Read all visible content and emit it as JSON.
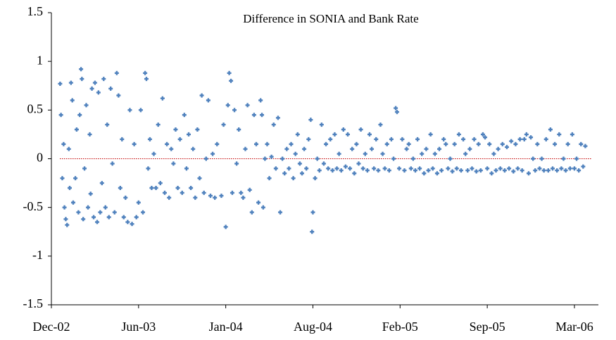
{
  "chart_data": {
    "type": "scatter",
    "title": "Difference in SONIA and Bank Rate",
    "x": [
      37620,
      37622,
      37625,
      37628,
      37630,
      37633,
      37636,
      37640,
      37642,
      37645,
      37648,
      37650,
      37655,
      37658,
      37662,
      37665,
      37668,
      37670,
      37673,
      37676,
      37680,
      37684,
      37688,
      37690,
      37693,
      37697,
      37700,
      37705,
      37708,
      37712,
      37716,
      37720,
      37724,
      37728,
      37732,
      37736,
      37740,
      37745,
      37750,
      37754,
      37758,
      37762,
      37766,
      37770,
      37775,
      37780,
      37785,
      37790,
      37795,
      37800,
      37805,
      37810,
      37815,
      37818,
      37822,
      37826,
      37830,
      37835,
      37840,
      37845,
      37850,
      37855,
      37860,
      37865,
      37870,
      37875,
      37880,
      37885,
      37890,
      37895,
      37900,
      37905,
      37910,
      37915,
      37920,
      37925,
      37930,
      37935,
      37940,
      37945,
      37950,
      37955,
      37960,
      37965,
      37970,
      37975,
      37980,
      37990,
      37995,
      38000,
      38005,
      38008,
      38012,
      38015,
      38020,
      38025,
      38030,
      38035,
      38040,
      38045,
      38050,
      38055,
      38060,
      38065,
      38070,
      38075,
      38080,
      38083,
      38086,
      38090,
      38095,
      38100,
      38105,
      38110,
      38115,
      38120,
      38125,
      38130,
      38135,
      38140,
      38145,
      38150,
      38155,
      38160,
      38165,
      38170,
      38175,
      38180,
      38185,
      38190,
      38195,
      38198,
      38200,
      38205,
      38210,
      38215,
      38220,
      38225,
      38230,
      38235,
      38240,
      38245,
      38250,
      38255,
      38260,
      38265,
      38270,
      38275,
      38280,
      38285,
      38290,
      38295,
      38300,
      38305,
      38310,
      38315,
      38320,
      38325,
      38330,
      38335,
      38340,
      38345,
      38350,
      38355,
      38360,
      38365,
      38370,
      38375,
      38380,
      38385,
      38390,
      38393,
      38398,
      38405,
      38410,
      38415,
      38420,
      38425,
      38430,
      38435,
      38440,
      38445,
      38450,
      38455,
      38460,
      38465,
      38470,
      38475,
      38480,
      38485,
      38490,
      38495,
      38500,
      38505,
      38510,
      38515,
      38520,
      38525,
      38530,
      38535,
      38540,
      38545,
      38550,
      38555,
      38560,
      38565,
      38570,
      38575,
      38580,
      38585,
      38590,
      38595,
      38600,
      38605,
      38610,
      38615,
      38620,
      38625,
      38630,
      38635,
      38640,
      38645,
      38650,
      38655,
      38660,
      38665,
      38670,
      38675,
      38680,
      38685,
      38690,
      38695,
      38700,
      38705,
      38710,
      38715,
      38720,
      38725,
      38730,
      38735,
      38740,
      38745,
      38750,
      38755,
      38760,
      38765,
      38770,
      38775,
      38780,
      38785,
      38790,
      38795,
      38800,
      38805,
      38810,
      38815,
      38820,
      38825
    ],
    "series": [
      {
        "color": "#4f81bd",
        "values": [
          0.77,
          0.45,
          -0.2,
          0.15,
          -0.5,
          -0.62,
          -0.68,
          0.1,
          -0.3,
          0.78,
          0.6,
          -0.45,
          -0.2,
          0.3,
          -0.55,
          0.45,
          0.92,
          0.82,
          -0.62,
          -0.1,
          0.55,
          -0.5,
          0.25,
          -0.36,
          0.72,
          -0.6,
          0.78,
          -0.65,
          0.68,
          -0.55,
          -0.25,
          0.82,
          -0.5,
          0.35,
          -0.6,
          0.72,
          -0.05,
          -0.55,
          0.88,
          0.65,
          -0.3,
          0.2,
          -0.6,
          -0.4,
          -0.65,
          0.5,
          -0.67,
          0.15,
          -0.6,
          -0.45,
          0.5,
          -0.55,
          0.88,
          0.82,
          -0.1,
          0.2,
          -0.3,
          0.05,
          -0.3,
          0.35,
          -0.25,
          0.62,
          -0.35,
          0.15,
          -0.4,
          0.1,
          -0.05,
          0.3,
          -0.3,
          0.2,
          -0.35,
          0.45,
          -0.1,
          0.25,
          -0.3,
          0.1,
          -0.4,
          0.3,
          -0.2,
          0.65,
          -0.35,
          0.0,
          0.6,
          -0.38,
          0.05,
          -0.4,
          0.15,
          -0.38,
          0.35,
          -0.7,
          0.55,
          0.88,
          0.8,
          -0.35,
          0.5,
          -0.05,
          0.3,
          -0.35,
          -0.4,
          0.1,
          0.55,
          -0.32,
          -0.55,
          0.45,
          0.15,
          -0.45,
          0.6,
          0.45,
          -0.5,
          0.0,
          0.15,
          -0.2,
          0.02,
          0.35,
          -0.1,
          0.42,
          -0.55,
          0.0,
          -0.15,
          0.1,
          -0.1,
          0.15,
          -0.2,
          0.05,
          0.25,
          -0.05,
          -0.15,
          0.1,
          -0.1,
          0.2,
          0.4,
          -0.75,
          -0.55,
          -0.2,
          0.0,
          -0.12,
          0.35,
          -0.05,
          0.15,
          -0.1,
          0.2,
          -0.12,
          0.25,
          -0.1,
          0.05,
          -0.12,
          0.3,
          -0.08,
          0.25,
          -0.1,
          0.1,
          -0.15,
          0.15,
          -0.05,
          0.3,
          -0.1,
          0.05,
          -0.12,
          0.25,
          0.1,
          -0.1,
          0.2,
          -0.12,
          0.35,
          0.05,
          -0.1,
          0.15,
          -0.12,
          0.2,
          0.0,
          0.52,
          0.48,
          -0.1,
          0.2,
          -0.12,
          0.1,
          0.15,
          -0.1,
          0.0,
          -0.12,
          0.2,
          -0.1,
          0.05,
          -0.15,
          0.1,
          -0.12,
          0.25,
          -0.1,
          0.05,
          -0.15,
          0.1,
          -0.12,
          0.2,
          0.15,
          -0.1,
          0.0,
          -0.13,
          0.15,
          -0.1,
          0.25,
          -0.12,
          0.2,
          0.05,
          -0.12,
          0.1,
          -0.1,
          0.2,
          -0.13,
          0.15,
          -0.12,
          0.25,
          0.22,
          -0.1,
          0.15,
          -0.15,
          0.05,
          -0.12,
          0.1,
          -0.1,
          0.15,
          -0.12,
          0.12,
          -0.1,
          0.18,
          -0.13,
          0.15,
          -0.1,
          0.2,
          -0.12,
          0.2,
          0.25,
          -0.15,
          0.22,
          0.0,
          -0.12,
          0.15,
          -0.1,
          0.0,
          -0.12,
          0.2,
          -0.12,
          0.3,
          -0.1,
          0.15,
          -0.12,
          0.25,
          -0.1,
          0.0,
          -0.12,
          0.15,
          -0.1,
          0.25,
          -0.1,
          0.0,
          -0.12,
          0.15,
          -0.08,
          0.13
        ]
      }
    ],
    "xlim": [
      37600,
      38855
    ],
    "xticks": [
      {
        "value": 37600,
        "label": "Dec-02"
      },
      {
        "value": 37800,
        "label": "Jun-03"
      },
      {
        "value": 38000,
        "label": "Jan-04"
      },
      {
        "value": 38200,
        "label": "Aug-04"
      },
      {
        "value": 38400,
        "label": "Feb-05"
      },
      {
        "value": 38600,
        "label": "Sep-05"
      },
      {
        "value": 38800,
        "label": "Mar-06"
      }
    ],
    "ylim": [
      -1.5,
      1.5
    ],
    "yticks": [
      -1.5,
      -1,
      -0.5,
      0,
      0.5,
      1,
      1.5
    ],
    "reference_line_color": "#c00000"
  }
}
